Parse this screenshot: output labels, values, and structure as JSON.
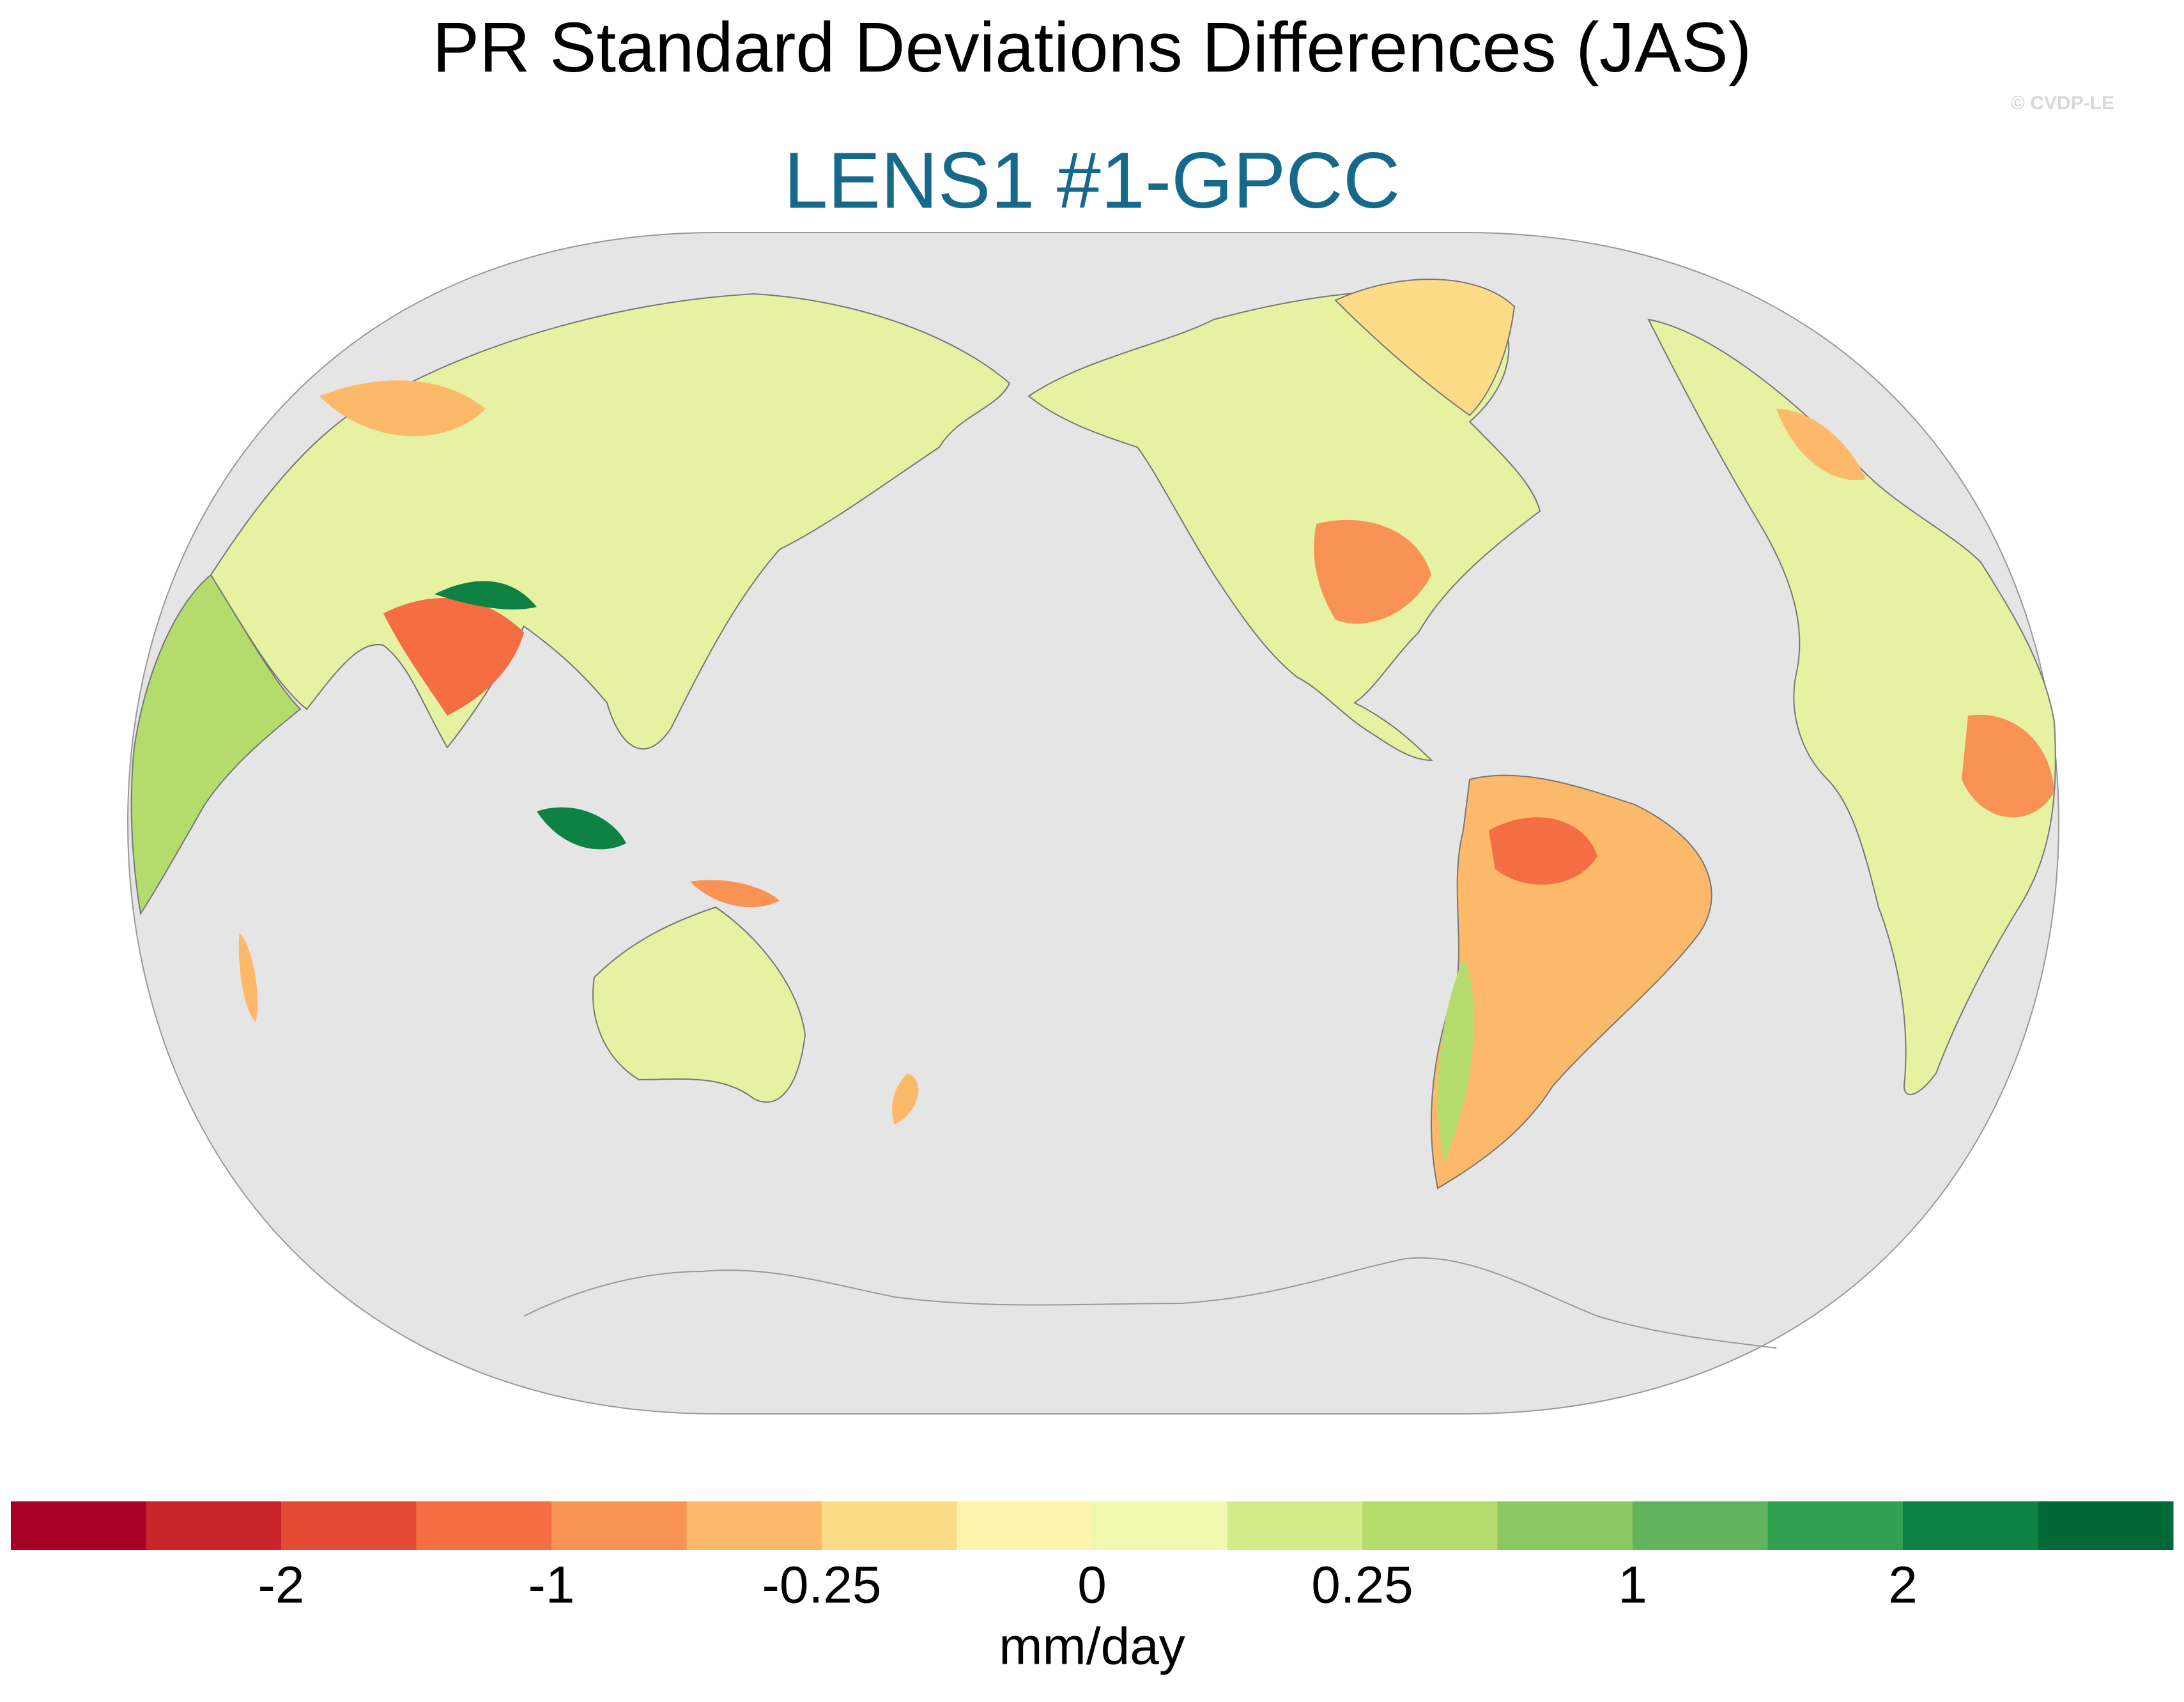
{
  "title": "PR Standard Deviations Differences (JAS)",
  "subtitle": "LENS1 #1-GPCC",
  "credit": "© CVDP-LE",
  "colorbar": {
    "label": "mm/day",
    "colors": [
      "#a50026",
      "#c9242a",
      "#e34a33",
      "#f46d43",
      "#f99355",
      "#fdb96a",
      "#fddc88",
      "#fef4ad",
      "#f0f8b0",
      "#d3ec8b",
      "#b3dc6c",
      "#8cc862",
      "#62b45c",
      "#31a051",
      "#0e8243",
      "#006837"
    ],
    "ticks": [
      -2,
      -1,
      -0.25,
      0,
      0.25,
      1,
      2
    ]
  }
}
